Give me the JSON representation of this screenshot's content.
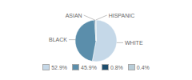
{
  "chart_data": {
    "type": "pie",
    "categories": [
      "WHITE",
      "BLACK",
      "ASIAN",
      "HISPANIC"
    ],
    "values": [
      52.9,
      45.9,
      0.8,
      0.4
    ],
    "value_labels": [
      "52.9%",
      "45.9%",
      "0.8%",
      "0.4%"
    ],
    "colors": [
      "#c5d8e8",
      "#5b8eab",
      "#1f4e6e",
      "#b8cdd8"
    ],
    "legend": "bottom"
  }
}
